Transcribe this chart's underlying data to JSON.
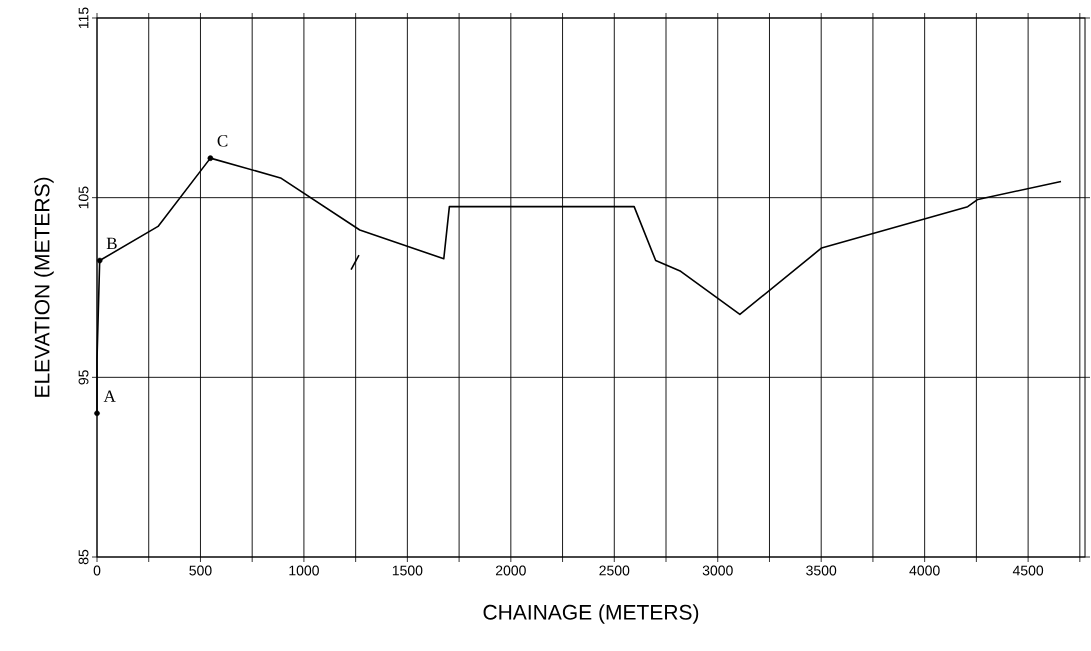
{
  "chart_data": {
    "type": "line",
    "xlabel": "CHAINAGE (METERS)",
    "ylabel": "ELEVATION (METERS)",
    "xlim": [
      0,
      4775
    ],
    "ylim": [
      85,
      115
    ],
    "xticks": [
      0,
      {
        "value": 250,
        "label": null
      },
      500,
      {
        "value": 750,
        "label": null
      },
      1000,
      {
        "value": 1250,
        "label": null
      },
      1500,
      {
        "value": 1750,
        "label": null
      },
      2000,
      {
        "value": 2250,
        "label": null
      },
      2500,
      {
        "value": 2750,
        "label": null
      },
      3000,
      {
        "value": 3250,
        "label": null
      },
      3500,
      {
        "value": 3750,
        "label": null
      },
      4000,
      {
        "value": 4250,
        "label": null
      },
      4500,
      {
        "value": 4750,
        "label": null
      }
    ],
    "yticks": [
      85,
      95,
      105,
      115
    ],
    "grid": true,
    "series": [
      {
        "color": "#000000",
        "marker": "none",
        "x": [
          0,
          0,
          13,
          295,
          548,
          887,
          1270,
          1676,
          1703,
          2596,
          2700,
          2821,
          3107,
          3502,
          4208,
          4257,
          4659
        ],
        "values": [
          93,
          96,
          101.5,
          103.4,
          107.2,
          106.1,
          103.2,
          101.6,
          104.5,
          104.5,
          101.5,
          100.9,
          98.5,
          102.2,
          104.5,
          104.9,
          105.9
        ]
      },
      {
        "color": "#000000",
        "marker": "none",
        "x": [
          1228,
          1266
        ],
        "values": [
          101.0,
          101.8
        ]
      },
      {
        "type": "scatter",
        "color": "#000000",
        "marker": "circle",
        "x": [
          0,
          13,
          548
        ],
        "values": [
          93,
          101.5,
          107.2
        ]
      }
    ],
    "annotations": [
      {
        "text": "A",
        "x": 0,
        "y": 93
      },
      {
        "text": "B",
        "x": 13,
        "y": 101.5
      },
      {
        "text": "C",
        "x": 548,
        "y": 107.2
      }
    ]
  }
}
